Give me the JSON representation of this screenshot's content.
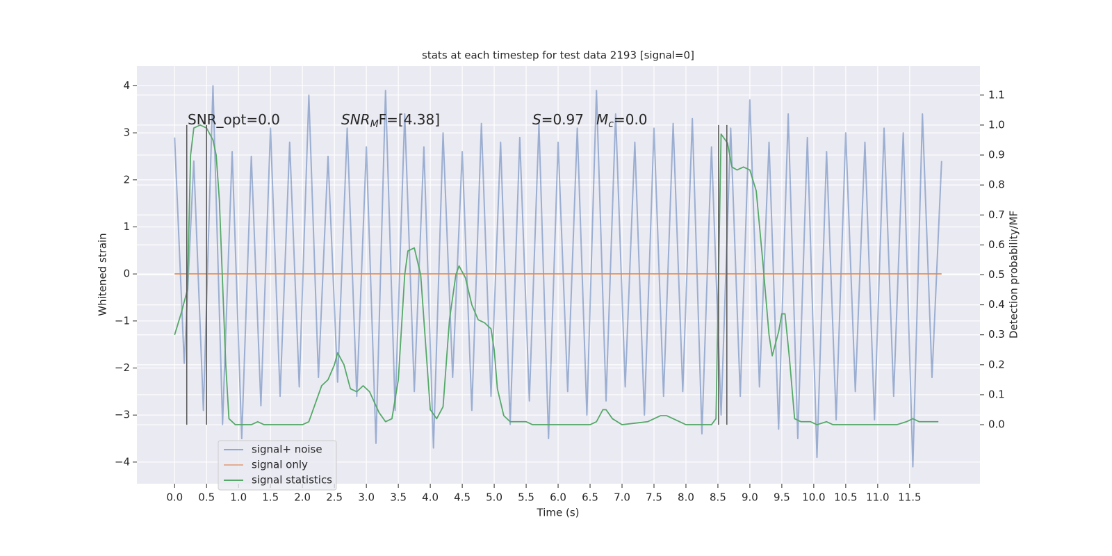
{
  "chart_data": {
    "type": "line",
    "title": "stats at each timestep for test data 2193 [signal=0]",
    "xlabel": "Time (s)",
    "ylabel": "Whitened strain",
    "y2label": "Detection probability/MF",
    "xlim": [
      -0.59,
      12.6
    ],
    "ylim": [
      -4.46,
      4.42
    ],
    "y2lim": [
      -0.197,
      1.197
    ],
    "xticks": [
      {
        "value": 0,
        "label": "0.0"
      },
      0.5,
      {
        "value": 1,
        "label": "1.0"
      },
      1.5,
      {
        "value": 2,
        "label": "2.0"
      },
      2.5,
      {
        "value": 3,
        "label": "3.0"
      },
      3.5,
      {
        "value": 4,
        "label": "4.0"
      },
      4.5,
      {
        "value": 5,
        "label": "5.0"
      },
      5.5,
      {
        "value": 6,
        "label": "6.0"
      },
      6.5,
      {
        "value": 7,
        "label": "7.0"
      },
      7.5,
      {
        "value": 8,
        "label": "8.0"
      },
      8.5,
      {
        "value": 9,
        "label": "9.0"
      },
      9.5,
      {
        "value": 10,
        "label": "10.0"
      },
      10.5,
      {
        "value": 11,
        "label": "11.0"
      },
      11.5
    ],
    "yticks": [
      {
        "value": -4,
        "label": "−4"
      },
      {
        "value": -3,
        "label": "−3"
      },
      {
        "value": -2,
        "label": "−2"
      },
      {
        "value": -1,
        "label": "−1"
      },
      0,
      1,
      2,
      3,
      4
    ],
    "y2ticks": [
      {
        "value": 0,
        "label": "0.0"
      },
      0.1,
      0.2,
      0.3,
      0.4,
      0.5,
      0.6,
      0.7,
      0.8,
      0.9,
      {
        "value": 1,
        "label": "1.0"
      },
      1.1
    ],
    "grid": true,
    "legend": "lower left",
    "annotations": [
      [
        "SNR_opt=0.0"
      ],
      [
        "SNR",
        "M",
        "F=[4.38]"
      ],
      [
        "S",
        "=0.97",
        "M",
        "c",
        "=0.0"
      ]
    ],
    "vlines": [
      {
        "x": 0.19,
        "y2min": 0,
        "y2max": 1
      },
      {
        "x": 0.5,
        "y2min": 0,
        "y2max": 1
      },
      {
        "x": 8.51,
        "y2min": 0,
        "y2max": 1
      },
      {
        "x": 8.64,
        "y2min": 0,
        "y2max": 1
      }
    ],
    "vline_color": "#555555",
    "series": [
      {
        "name": "signal+ noise",
        "color": "#4c72b0",
        "x": [
          0,
          0.15,
          0.3,
          0.45,
          0.6,
          0.75,
          0.9,
          1.05,
          1.2,
          1.35,
          1.5,
          1.65,
          1.8,
          1.95,
          2.1,
          2.25,
          2.4,
          2.55,
          2.7,
          2.85,
          3,
          3.15,
          3.3,
          3.45,
          3.6,
          3.75,
          3.9,
          4.05,
          4.2,
          4.35,
          4.5,
          4.65,
          4.8,
          4.95,
          5.1,
          5.25,
          5.4,
          5.55,
          5.7,
          5.85,
          6,
          6.15,
          6.3,
          6.45,
          6.6,
          6.75,
          6.9,
          7.05,
          7.2,
          7.35,
          7.5,
          7.65,
          7.8,
          7.95,
          8.1,
          8.25,
          8.4,
          8.55,
          8.7,
          8.85,
          9,
          9.15,
          9.3,
          9.45,
          9.6,
          9.75,
          9.9,
          10.05,
          10.2,
          10.35,
          10.5,
          10.65,
          10.8,
          10.95,
          11.1,
          11.25,
          11.4,
          11.55,
          11.7,
          11.85,
          12
        ],
        "values": [
          2.9,
          -1.9,
          2.4,
          -2.9,
          4.0,
          -3.2,
          2.6,
          -3.5,
          2.5,
          -2.8,
          3.1,
          -2.6,
          2.8,
          -2.4,
          3.8,
          -2.2,
          2.5,
          -2.3,
          3.1,
          -2.6,
          2.7,
          -3.6,
          3.9,
          -2.9,
          3.4,
          -2.5,
          2.7,
          -3.7,
          3.0,
          -2.2,
          2.6,
          -2.9,
          3.2,
          -2.6,
          2.8,
          -3.2,
          2.9,
          -2.7,
          3.2,
          -3.5,
          2.8,
          -2.5,
          3.1,
          -3.0,
          3.9,
          -2.7,
          3.4,
          -2.4,
          2.8,
          -3.0,
          3.1,
          -2.6,
          3.2,
          -2.5,
          3.3,
          -3.4,
          2.7,
          -3.0,
          3.1,
          -2.6,
          3.7,
          -2.4,
          2.8,
          -3.3,
          3.4,
          -3.5,
          2.9,
          -3.9,
          2.6,
          -3.1,
          3.0,
          -2.5,
          2.8,
          -3.1,
          3.1,
          -2.6,
          3.0,
          -4.1,
          3.4,
          -2.2,
          2.4
        ]
      },
      {
        "name": "signal only",
        "color": "#dd8452",
        "x": [
          0,
          12
        ],
        "values": [
          0,
          0
        ]
      },
      {
        "name": "signal statistics",
        "color": "#55a868",
        "axis": "y2",
        "x": [
          0,
          0.1,
          0.2,
          0.25,
          0.3,
          0.4,
          0.5,
          0.6,
          0.65,
          0.7,
          0.8,
          0.85,
          0.95,
          1.2,
          1.3,
          1.4,
          2.0,
          2.1,
          2.2,
          2.3,
          2.4,
          2.5,
          2.55,
          2.65,
          2.75,
          2.85,
          2.95,
          3.05,
          3.2,
          3.3,
          3.4,
          3.5,
          3.6,
          3.65,
          3.75,
          3.85,
          3.95,
          4.0,
          4.1,
          4.2,
          4.3,
          4.4,
          4.45,
          4.55,
          4.65,
          4.75,
          4.85,
          4.95,
          5.0,
          5.05,
          5.15,
          5.25,
          5.5,
          5.6,
          6.5,
          6.6,
          6.7,
          6.75,
          6.85,
          7.0,
          7.4,
          7.6,
          7.7,
          7.8,
          8.0,
          8.4,
          8.47,
          8.55,
          8.65,
          8.72,
          8.8,
          8.9,
          9.0,
          9.1,
          9.2,
          9.3,
          9.35,
          9.45,
          9.5,
          9.55,
          9.62,
          9.7,
          9.8,
          9.95,
          10.05,
          10.2,
          10.3,
          11.2,
          11.3,
          11.45,
          11.55,
          11.65,
          11.95
        ],
        "values": [
          0.3,
          0.37,
          0.45,
          0.9,
          0.99,
          1.0,
          0.99,
          0.95,
          0.9,
          0.75,
          0.2,
          0.02,
          0.0,
          0.0,
          0.01,
          0.0,
          0.0,
          0.01,
          0.07,
          0.13,
          0.15,
          0.2,
          0.24,
          0.2,
          0.12,
          0.11,
          0.13,
          0.11,
          0.04,
          0.01,
          0.02,
          0.15,
          0.5,
          0.58,
          0.59,
          0.5,
          0.2,
          0.05,
          0.02,
          0.06,
          0.35,
          0.5,
          0.53,
          0.49,
          0.4,
          0.35,
          0.34,
          0.32,
          0.25,
          0.12,
          0.03,
          0.01,
          0.01,
          0.0,
          0.0,
          0.01,
          0.05,
          0.05,
          0.02,
          0.0,
          0.01,
          0.03,
          0.03,
          0.02,
          0.0,
          0.0,
          0.02,
          0.97,
          0.94,
          0.86,
          0.85,
          0.86,
          0.85,
          0.78,
          0.55,
          0.3,
          0.23,
          0.31,
          0.37,
          0.37,
          0.22,
          0.02,
          0.01,
          0.01,
          0.0,
          0.01,
          0.0,
          0.0,
          0.0,
          0.01,
          0.02,
          0.01,
          0.01
        ]
      }
    ]
  }
}
